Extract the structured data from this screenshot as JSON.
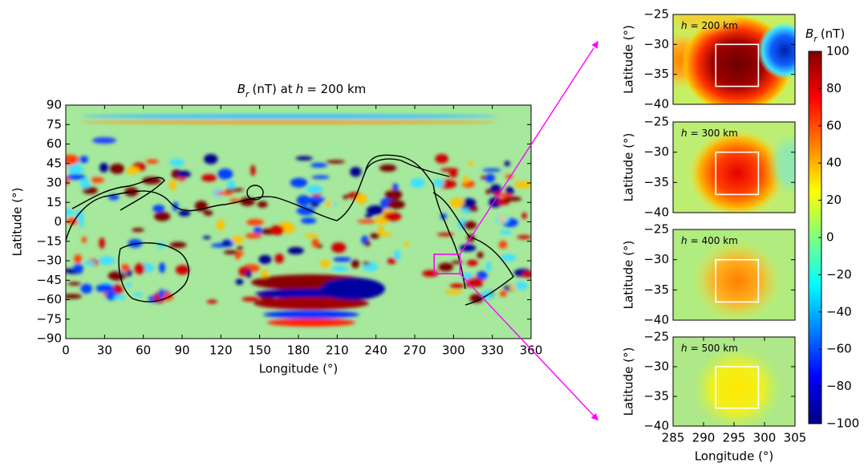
{
  "chart_data": [
    {
      "type": "heatmap",
      "title": [
        "B",
        "r",
        "(nT) at",
        "h",
        "= 200 km"
      ],
      "xlabel": "Longitude (°)",
      "ylabel": "Latitude (°)",
      "xlim": [
        0,
        360
      ],
      "ylim": [
        -90,
        90
      ],
      "xticks": [
        0,
        30,
        60,
        90,
        120,
        150,
        180,
        210,
        240,
        270,
        300,
        330,
        360
      ],
      "yticks": [
        {
          "value": -90,
          "label": "−90"
        },
        {
          "value": -75,
          "label": "−75"
        },
        {
          "value": -60,
          "label": "−60"
        },
        {
          "value": -45,
          "label": "−45"
        },
        {
          "value": -30,
          "label": "−30"
        },
        {
          "value": -15,
          "label": "−15"
        },
        0,
        15,
        30,
        45,
        60,
        75,
        90
      ],
      "inset": {
        "xlim": [
          285,
          305
        ],
        "ylim": [
          -40,
          -25
        ]
      },
      "inset_color": "#ff00ff"
    },
    {
      "type": "heatmap",
      "label": [
        "h",
        "= 200 km"
      ],
      "ylabel": "Latitude (°)",
      "xlim": [
        285,
        305
      ],
      "ylim": [
        -40,
        -25
      ],
      "yticks": [
        {
          "value": -40,
          "label": "−40"
        },
        {
          "value": -35,
          "label": "−35"
        },
        {
          "value": -30,
          "label": "−30"
        },
        {
          "value": -25,
          "label": "−25"
        }
      ],
      "box": {
        "xlim": [
          292,
          299
        ],
        "ylim": [
          -37,
          -30
        ]
      },
      "box_color": "#ffffff"
    },
    {
      "type": "heatmap",
      "label": [
        "h",
        "= 300 km"
      ],
      "ylabel": "Latitude (°)",
      "xlim": [
        285,
        305
      ],
      "ylim": [
        -40,
        -25
      ],
      "yticks": [
        {
          "value": -40,
          "label": "−40"
        },
        {
          "value": -35,
          "label": "−35"
        },
        {
          "value": -30,
          "label": "−30"
        },
        {
          "value": -25,
          "label": "−25"
        }
      ],
      "box": {
        "xlim": [
          292,
          299
        ],
        "ylim": [
          -37,
          -30
        ]
      },
      "box_color": "#ffffff"
    },
    {
      "type": "heatmap",
      "label": [
        "h",
        "= 400 km"
      ],
      "ylabel": "Latitude (°)",
      "xlim": [
        285,
        305
      ],
      "ylim": [
        -40,
        -25
      ],
      "yticks": [
        {
          "value": -40,
          "label": "−40"
        },
        {
          "value": -35,
          "label": "−35"
        },
        {
          "value": -30,
          "label": "−30"
        },
        {
          "value": -25,
          "label": "−25"
        }
      ],
      "box": {
        "xlim": [
          292,
          299
        ],
        "ylim": [
          -37,
          -30
        ]
      },
      "box_color": "#ffffff"
    },
    {
      "type": "heatmap",
      "label": [
        "h",
        "= 500 km"
      ],
      "ylabel": "Latitude (°)",
      "xlabel": "Longitude (°)",
      "xlim": [
        285,
        305
      ],
      "ylim": [
        -40,
        -25
      ],
      "xticks": [
        285,
        290,
        295,
        300,
        305
      ],
      "yticks": [
        {
          "value": -40,
          "label": "−40"
        },
        {
          "value": -35,
          "label": "−35"
        },
        {
          "value": -30,
          "label": "−30"
        },
        {
          "value": -25,
          "label": "−25"
        }
      ],
      "box": {
        "xlim": [
          292,
          299
        ],
        "ylim": [
          -37,
          -30
        ]
      },
      "box_color": "#ffffff"
    },
    {
      "type": "colorbar",
      "label": [
        "B",
        "r",
        "(nT)"
      ],
      "ylim": [
        -100,
        100
      ],
      "yticks": [
        {
          "value": -100,
          "label": "−100"
        },
        {
          "value": -80,
          "label": "−80"
        },
        {
          "value": -60,
          "label": "−60"
        },
        {
          "value": -40,
          "label": "−40"
        },
        {
          "value": -20,
          "label": "−20"
        },
        0,
        20,
        40,
        60,
        80,
        100
      ],
      "colormap": [
        "#00007f",
        "#0000ff",
        "#00ffff",
        "#ffff00",
        "#ff0000",
        "#7f0000"
      ]
    }
  ]
}
